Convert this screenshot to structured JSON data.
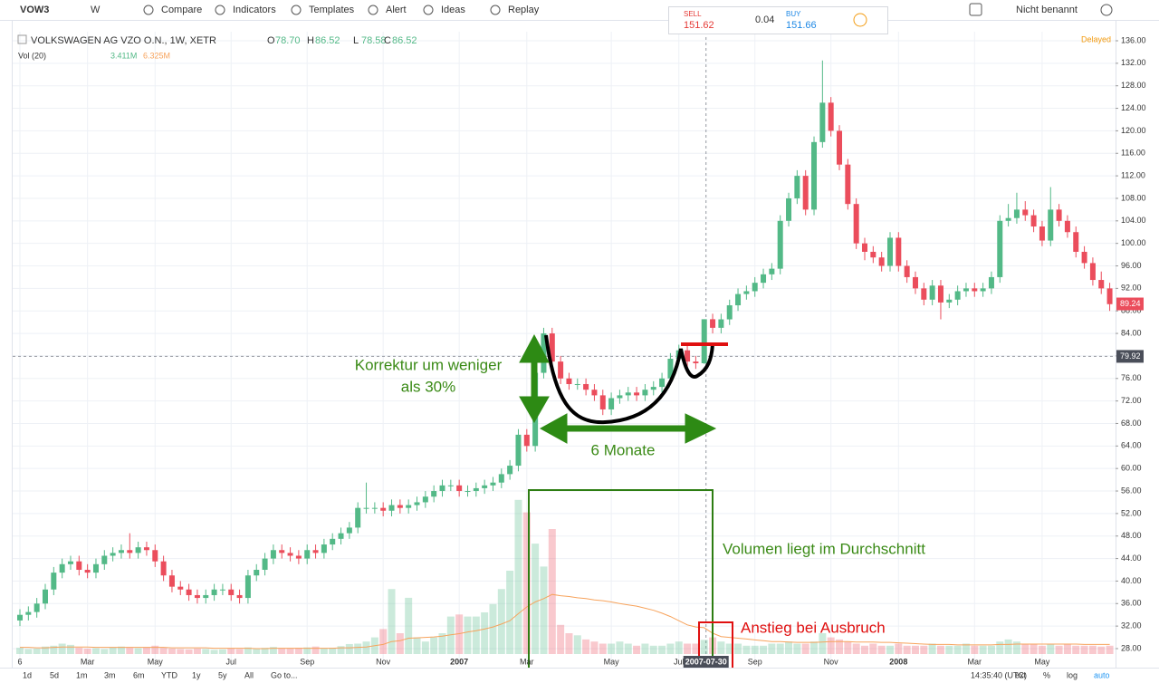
{
  "toolbar": {
    "symbol": "VOW3",
    "interval": "W",
    "buttons": [
      "Compare",
      "Indicators",
      "Templates",
      "Alert",
      "Ideas",
      "Replay"
    ],
    "sell_label": "SELL",
    "sell_price": "151.62",
    "spread": "0.04",
    "buy_label": "BUY",
    "buy_price": "151.66",
    "layout_name": "Nicht benannt"
  },
  "legend": {
    "instrument": "VOLKSWAGEN AG VZO O.N., 1W, XETR",
    "ohlc": [
      [
        "O",
        "78.70"
      ],
      [
        "H",
        "86.52"
      ],
      [
        "L",
        "78.58"
      ],
      [
        "C",
        "86.52"
      ]
    ],
    "volume_title": "Vol (20)",
    "volume_value": "3.411M",
    "volume_ma_value": "6.325M",
    "status": "Delayed"
  },
  "chart_data": {
    "type": "candlestick",
    "categories": [
      "6",
      null,
      null,
      null,
      null,
      null,
      null,
      null,
      "Mar",
      null,
      null,
      null,
      null,
      null,
      null,
      null,
      "May",
      null,
      null,
      null,
      null,
      null,
      null,
      null,
      null,
      "Jul",
      null,
      null,
      null,
      null,
      null,
      null,
      null,
      null,
      "Sep",
      null,
      null,
      null,
      null,
      null,
      null,
      null,
      null,
      "Nov",
      null,
      null,
      null,
      null,
      null,
      null,
      null,
      null,
      "2007",
      null,
      null,
      null,
      null,
      null,
      null,
      null,
      "Mar",
      null,
      null,
      null,
      null,
      null,
      null,
      null,
      null,
      null,
      "May",
      null,
      null,
      null,
      null,
      null,
      null,
      null,
      "Jul",
      null,
      null,
      null,
      null,
      null,
      null,
      null,
      null,
      "Sep",
      null,
      null,
      null,
      null,
      null,
      null,
      null,
      null,
      "Nov",
      null,
      null,
      null,
      null,
      null,
      null,
      null,
      "2008",
      null,
      null,
      null,
      null,
      null,
      null,
      null,
      null,
      "Mar",
      null,
      null,
      null,
      null,
      null,
      null,
      null,
      "May",
      null,
      null,
      null,
      null,
      null,
      null,
      null,
      null
    ],
    "open": [
      33,
      34,
      34.5,
      36,
      38.5,
      41.5,
      43,
      43.5,
      42,
      41.5,
      43,
      44.5,
      45,
      45.5,
      45,
      46,
      45.5,
      43.5,
      41,
      39,
      38.5,
      37.5,
      37,
      37.5,
      38.5,
      38.5,
      37.5,
      37,
      41,
      42,
      44,
      45.5,
      45,
      44.5,
      44,
      45.5,
      45,
      46.5,
      47.5,
      48.5,
      49.5,
      53,
      53,
      53,
      52.5,
      53.5,
      53,
      53.5,
      54,
      55,
      56,
      57,
      57,
      56,
      56,
      56.5,
      57,
      57.5,
      59,
      60.5,
      66,
      64,
      77,
      84,
      79,
      76,
      75,
      75,
      74,
      73,
      70.5,
      72.5,
      73,
      73.5,
      73,
      74,
      74.5,
      76,
      79.5,
      81,
      79,
      78.7,
      86.52,
      85,
      86.5,
      89,
      91,
      91.5,
      93,
      94.5,
      95.5,
      104,
      108,
      112,
      106,
      118,
      125,
      120,
      114,
      107,
      100,
      98.5,
      97.5,
      96,
      101,
      96,
      94,
      92,
      90,
      92.5,
      89.5,
      90,
      91.5,
      92,
      91.5,
      92,
      94,
      104,
      104.5,
      106,
      105,
      103,
      100.5,
      106,
      104,
      102,
      98.5,
      96.5,
      93.5,
      92
    ],
    "high": [
      35,
      35.5,
      37,
      39.5,
      42.5,
      44,
      44.5,
      44.5,
      43,
      44,
      45.5,
      46,
      46.5,
      48.5,
      47,
      47,
      46.5,
      44.5,
      42,
      40,
      39.5,
      38.5,
      38.5,
      39.5,
      39.5,
      39.5,
      38.5,
      42,
      43,
      45,
      46.5,
      46.5,
      46,
      45.5,
      46.5,
      46.5,
      47.5,
      48.5,
      49.5,
      50.5,
      54,
      57.5,
      54,
      54,
      54.5,
      54.5,
      54.5,
      55,
      56,
      57,
      58,
      58,
      58,
      57,
      57.5,
      58,
      58.5,
      60,
      61.5,
      67,
      67,
      78,
      85,
      85,
      80,
      77,
      76,
      76,
      75,
      74,
      73.5,
      74,
      74.5,
      74.5,
      75,
      75.5,
      77,
      80.5,
      82,
      82,
      80,
      86.52,
      87.5,
      87.5,
      90,
      92,
      92.5,
      94,
      95.5,
      96.5,
      105,
      109,
      113,
      113,
      119,
      132.5,
      126,
      121,
      115,
      108,
      101,
      99.5,
      98.5,
      102,
      102,
      97,
      95,
      93,
      93.5,
      93.5,
      91,
      92.5,
      93,
      93,
      93,
      95,
      105,
      107,
      109,
      107.5,
      106,
      104,
      110,
      107,
      105,
      103,
      99.5,
      97.5,
      95,
      93
    ],
    "low": [
      32,
      33,
      33.5,
      35,
      37.5,
      40.5,
      42,
      41,
      40.5,
      40.5,
      42,
      43.5,
      44,
      44,
      44,
      44.5,
      42.5,
      40,
      38,
      37.5,
      36.5,
      36,
      36,
      36.5,
      37.5,
      36.5,
      36,
      36,
      40,
      41,
      43,
      44,
      43.5,
      43,
      43,
      44,
      44,
      45.5,
      46.5,
      47.5,
      48.5,
      52,
      52,
      51.5,
      51.5,
      52,
      52,
      52.5,
      53,
      54,
      55,
      56,
      55,
      55,
      55,
      55.5,
      56,
      56.5,
      58,
      59.5,
      63,
      63,
      76,
      78,
      75,
      74,
      74,
      73,
      72,
      69.5,
      69.5,
      71.5,
      72,
      72,
      72,
      73,
      73.5,
      75,
      78.5,
      78,
      77.7,
      78.58,
      84,
      84,
      85.5,
      88,
      90,
      90.5,
      92,
      93.5,
      94.5,
      103,
      107,
      105,
      105,
      117,
      119,
      113,
      106,
      99,
      97,
      96.5,
      95,
      95,
      95,
      93,
      91,
      89,
      89,
      86.5,
      88.5,
      89,
      90.5,
      90.5,
      90.5,
      91,
      93,
      103,
      103.5,
      104,
      102,
      99.5,
      99.5,
      103,
      101,
      97.5,
      95.5,
      92.5,
      91,
      88
    ],
    "close": [
      34,
      34.5,
      36,
      38.5,
      41.5,
      43,
      43.5,
      42,
      41.5,
      43,
      44.5,
      45,
      45.5,
      45,
      46,
      45.5,
      43.5,
      41,
      39,
      38.5,
      37.5,
      37,
      37.5,
      38.5,
      38.5,
      37.5,
      37,
      41,
      42,
      44,
      45.5,
      45,
      44.5,
      44,
      45.5,
      45,
      46.5,
      47.5,
      48.5,
      49.5,
      53,
      53,
      53,
      52.5,
      53.5,
      53,
      53.5,
      54,
      55,
      56,
      57,
      57,
      56,
      56,
      56.5,
      57,
      57.5,
      59,
      60.5,
      66,
      64,
      77,
      84,
      79,
      76,
      75,
      75,
      74,
      73,
      70.5,
      72.5,
      73,
      73.5,
      73,
      74,
      74.5,
      76,
      79.5,
      81,
      79,
      78.7,
      86.52,
      85,
      86.5,
      89,
      91,
      91.5,
      93,
      94.5,
      95.5,
      104,
      108,
      112,
      106,
      118,
      125,
      120,
      114,
      107,
      100,
      98.5,
      97.5,
      96,
      101,
      96,
      94,
      92,
      90,
      92.5,
      89.5,
      90,
      91.5,
      92,
      91.5,
      92,
      94,
      104,
      104.5,
      106,
      105,
      103,
      100.5,
      106,
      104,
      102,
      98.5,
      96.5,
      93.5,
      92,
      89.2
    ],
    "volume": [
      1.5,
      1.2,
      1.3,
      1.8,
      2,
      2.5,
      2.2,
      1.5,
      1.3,
      1.4,
      1.2,
      1.6,
      1.8,
      1.5,
      1.4,
      1.6,
      2,
      1.5,
      1.3,
      1.2,
      1.1,
      1.3,
      1.2,
      1,
      1.1,
      1.4,
      1.2,
      1.6,
      1.3,
      1.5,
      1.7,
      1.4,
      1.3,
      1.5,
      1.6,
      1.8,
      1.4,
      1.5,
      1.9,
      2.4,
      2.5,
      3,
      4,
      6,
      15.6,
      5,
      13.5,
      4,
      3,
      4,
      5,
      9,
      9.5,
      9,
      9,
      10,
      12,
      15.6,
      20,
      37,
      34,
      26.5,
      21,
      30,
      7,
      5,
      4.5,
      3.5,
      3,
      2.5,
      2.5,
      3,
      2.5,
      2,
      2.5,
      2,
      2,
      2.5,
      3,
      2.5,
      2.5,
      3.4,
      4,
      3,
      2.5,
      2.5,
      2,
      2,
      2,
      2.5,
      2.5,
      3,
      2.5,
      2.5,
      3,
      5,
      4,
      3.5,
      3,
      2.5,
      2,
      2.5,
      2,
      2,
      2.5,
      2,
      2,
      2,
      2.5,
      2,
      2,
      2,
      2.5,
      2,
      2,
      2,
      3,
      3.5,
      3,
      2.5,
      2.5,
      2,
      2.5,
      2,
      2.5,
      2,
      2,
      2,
      1.8,
      2
    ],
    "volume_ma": [
      1.6,
      1.6,
      1.5,
      1.5,
      1.6,
      1.7,
      1.7,
      1.7,
      1.7,
      1.6,
      1.6,
      1.6,
      1.6,
      1.6,
      1.6,
      1.6,
      1.6,
      1.6,
      1.5,
      1.5,
      1.5,
      1.5,
      1.5,
      1.4,
      1.4,
      1.4,
      1.4,
      1.4,
      1.3,
      1.3,
      1.4,
      1.4,
      1.4,
      1.4,
      1.4,
      1.4,
      1.4,
      1.4,
      1.5,
      1.5,
      1.6,
      1.7,
      2,
      2.3,
      3,
      3.2,
      3.8,
      3.9,
      4,
      4.1,
      4.3,
      4.6,
      4.9,
      5.3,
      5.6,
      6,
      6.5,
      7.2,
      8,
      9.7,
      11.3,
      12.5,
      13.3,
      14.3,
      14,
      13.8,
      13.5,
      13.3,
      13,
      12.8,
      12.5,
      12.1,
      11.8,
      11.5,
      11,
      10.5,
      9.8,
      9,
      8,
      7,
      6.5,
      6.325,
      5,
      4.2,
      4,
      3.8,
      3.6,
      3.4,
      3.2,
      3,
      3,
      2.9,
      2.8,
      2.8,
      2.8,
      2.9,
      3,
      3,
      3,
      2.9,
      2.9,
      2.9,
      2.8,
      2.8,
      2.7,
      2.6,
      2.5,
      2.4,
      2.3,
      2.3,
      2.3,
      2.2,
      2.2,
      2.2,
      2.2,
      2.2,
      2.3,
      2.3,
      2.4,
      2.4,
      2.4,
      2.4,
      2.4,
      2.4,
      2.4,
      2.4,
      2.3,
      2.3,
      2.3,
      2.3
    ],
    "up_color": "#53b987",
    "down_color": "#eb4d5c",
    "volume_ma_color": "#f7a35c",
    "ylim": [
      24.94,
      137.61
    ],
    "yticks": [
      {
        "value": 28,
        "label": "28.00"
      },
      {
        "value": 32,
        "label": "32.00"
      },
      {
        "value": 36,
        "label": "36.00"
      },
      {
        "value": 40,
        "label": "40.00"
      },
      {
        "value": 44,
        "label": "44.00"
      },
      {
        "value": 48,
        "label": "48.00"
      },
      {
        "value": 52,
        "label": "52.00"
      },
      {
        "value": 56,
        "label": "56.00"
      },
      {
        "value": 60,
        "label": "60.00"
      },
      {
        "value": 64,
        "label": "64.00"
      },
      {
        "value": 68,
        "label": "68.00"
      },
      {
        "value": 72,
        "label": "72.00"
      },
      {
        "value": 76,
        "label": "76.00"
      },
      {
        "value": 80,
        "label": "80.00"
      },
      {
        "value": 84,
        "label": "84.00"
      },
      {
        "value": 88,
        "label": "88.00"
      },
      {
        "value": 92,
        "label": "92.00"
      },
      {
        "value": 96,
        "label": "96.00"
      },
      {
        "value": 100,
        "label": "100.00"
      },
      {
        "value": 104,
        "label": "104.00"
      },
      {
        "value": 108,
        "label": "108.00"
      },
      {
        "value": 112,
        "label": "112.00"
      },
      {
        "value": 116,
        "label": "116.00"
      },
      {
        "value": 120,
        "label": "120.00"
      },
      {
        "value": 124,
        "label": "124.00"
      },
      {
        "value": 128,
        "label": "128.00"
      },
      {
        "value": 132,
        "label": "132.00"
      },
      {
        "value": 136,
        "label": "136.00"
      }
    ],
    "grid": true,
    "last_price": 89.24,
    "crosshair": {
      "date": "2007-07-30",
      "price": 79.92
    },
    "annotations": {
      "correction": [
        "Korrektur um weniger",
        "als 30%"
      ],
      "duration": "6 Monate",
      "volume_note": "Volumen liegt im Durchschnitt",
      "breakout_note": "Anstieg bei Ausbruch"
    }
  },
  "bottom_bar": {
    "ranges": [
      "1d",
      "5d",
      "1m",
      "3m",
      "6m",
      "YTD",
      "1y",
      "5y",
      "All",
      "Go to..."
    ],
    "time": "14:35:40 (UTC)",
    "options": [
      "ext",
      "%",
      "log",
      "auto"
    ]
  }
}
